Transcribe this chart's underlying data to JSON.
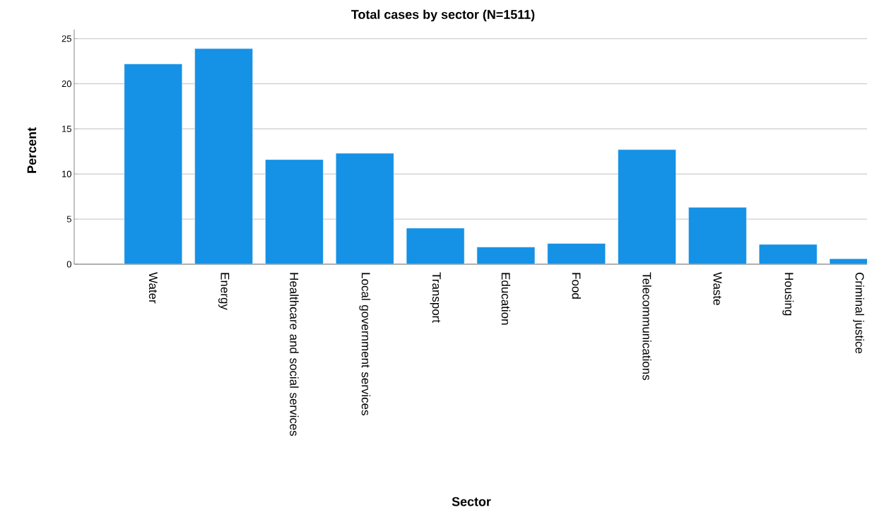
{
  "chart_data": {
    "type": "bar",
    "title": "Total cases by sector (N=1511)",
    "xlabel": "Sector",
    "ylabel": "Percent",
    "categories": [
      "Water",
      "Energy",
      "Healthcare and social services",
      "Local government services",
      "Transport",
      "Education",
      "Food",
      "Telecommunications",
      "Waste",
      "Housing",
      "Criminal justice"
    ],
    "values": [
      22.2,
      23.9,
      11.6,
      12.3,
      4.0,
      1.9,
      2.3,
      12.7,
      6.3,
      2.2,
      0.6
    ],
    "color": "#1591e6",
    "ylim": [
      0,
      26
    ],
    "yticks": [
      0,
      5,
      10,
      15,
      20,
      25
    ],
    "grid": "y"
  }
}
